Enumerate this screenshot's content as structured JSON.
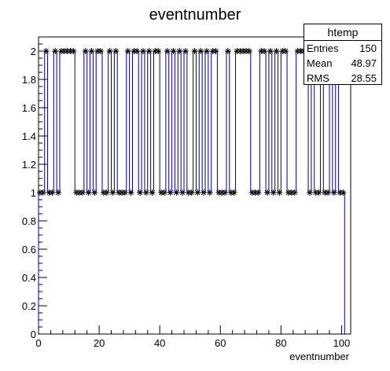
{
  "chart_data": {
    "type": "line",
    "title": "eventnumber",
    "xlabel": "eventnumber",
    "ylabel": "",
    "xlim": [
      0,
      103
    ],
    "ylim": [
      0,
      2.1
    ],
    "grid": false,
    "x_ticks": [
      0,
      20,
      40,
      60,
      80,
      100
    ],
    "y_ticks": [
      0,
      0.2,
      0.4,
      0.6,
      0.8,
      1,
      1.2,
      1.4,
      1.6,
      1.8,
      2
    ],
    "x_tick_labels": [
      "0",
      "20",
      "40",
      "60",
      "80",
      "100"
    ],
    "y_tick_labels": [
      "0",
      "0.2",
      "0.4",
      "0.6",
      "0.8",
      "1",
      "1.2",
      "1.4",
      "1.6",
      "1.8",
      "2"
    ],
    "bins": {
      "min": 0,
      "max": 103,
      "count": 103
    },
    "series": [
      {
        "color": "#000080",
        "x": [
          0,
          1,
          2,
          3,
          4,
          5,
          6,
          7,
          8,
          9,
          10,
          11,
          12,
          13,
          14,
          15,
          16,
          17,
          18,
          19,
          20,
          21,
          22,
          23,
          24,
          25,
          26,
          27,
          28,
          29,
          30,
          31,
          32,
          33,
          34,
          35,
          36,
          37,
          38,
          39,
          40,
          41,
          42,
          43,
          44,
          45,
          46,
          47,
          48,
          49,
          50,
          51,
          52,
          53,
          54,
          55,
          56,
          57,
          58,
          59,
          60,
          61,
          62,
          63,
          64,
          65,
          66,
          67,
          68,
          69,
          70,
          71,
          72,
          73,
          74,
          75,
          76,
          77,
          78,
          79,
          80,
          81,
          82,
          83,
          84,
          85,
          86,
          87,
          88,
          89,
          90,
          91,
          92,
          93,
          94,
          95,
          96,
          97,
          98,
          99,
          100
        ],
        "values": [
          1,
          1,
          2,
          1,
          1,
          2,
          1,
          2,
          2,
          2,
          2,
          2,
          1,
          1,
          1,
          2,
          1,
          2,
          1,
          2,
          2,
          1,
          1,
          2,
          1,
          2,
          1,
          1,
          1,
          2,
          1,
          2,
          2,
          1,
          2,
          1,
          2,
          1,
          2,
          2,
          1,
          1,
          2,
          1,
          2,
          1,
          2,
          1,
          2,
          1,
          1,
          2,
          1,
          2,
          1,
          2,
          1,
          2,
          2,
          1,
          1,
          1,
          2,
          1,
          1,
          2,
          2,
          2,
          2,
          2,
          1,
          1,
          1,
          2,
          2,
          1,
          2,
          1,
          2,
          1,
          2,
          2,
          1,
          1,
          1,
          2,
          2,
          2,
          2,
          1,
          2,
          1,
          1,
          2,
          1,
          1,
          2,
          1,
          2,
          1,
          1
        ]
      }
    ],
    "stats": {
      "title": "htemp",
      "entries_label": "Entries",
      "entries": "150",
      "mean_label": "Mean",
      "mean": "48.97",
      "rms_label": "RMS",
      "rms": "28.55"
    }
  }
}
